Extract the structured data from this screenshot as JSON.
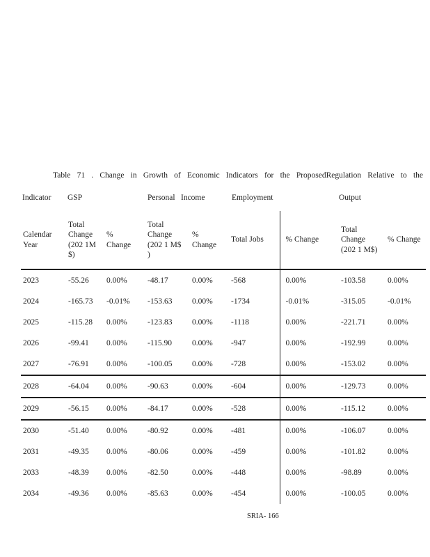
{
  "page": {
    "title": "Table 71 . Change in Growth of Economic Indicators for the ProposedRegulation Relative to the",
    "footer": "SRIA- 166"
  },
  "table": {
    "group_header_row": {
      "indicator": "Indicator",
      "gsp": "GSP",
      "personal": "Personal",
      "income": "Income",
      "employment": "Employment",
      "output": "Output"
    },
    "columns": [
      {
        "id": "calendar-year",
        "lines": [
          "Calendar",
          "Year"
        ]
      },
      {
        "id": "gsp-total-change",
        "lines": [
          "Total",
          "Change",
          "(202  1M",
          "$)"
        ]
      },
      {
        "id": "gsp-pct-change",
        "lines": [
          "%",
          "Change"
        ]
      },
      {
        "id": "personal-income-total-change",
        "lines": [
          "Total",
          "Change",
          "(202  1 M$",
          ")"
        ]
      },
      {
        "id": "personal-income-pct-change",
        "lines": [
          "%",
          "Change"
        ]
      },
      {
        "id": "employment-total-jobs",
        "lines": [
          "Total    Jobs"
        ]
      },
      {
        "id": "employment-pct-change",
        "lines": [
          "%  Change"
        ]
      },
      {
        "id": "output-total-change",
        "lines": [
          "Total",
          "Change",
          "(202   1 M$)"
        ]
      },
      {
        "id": "output-pct-change",
        "lines": [
          "%  Change"
        ]
      }
    ],
    "rows": [
      [
        "2023",
        "-55.26",
        "0.00%",
        "-48.17",
        "0.00%",
        "-568",
        "0.00%",
        "-103.58",
        "0.00%"
      ],
      [
        "2024",
        "-165.73",
        "-0.01%",
        "-153.63",
        "0.00%",
        "-1734",
        "-0.01%",
        "-315.05",
        "-0.01%"
      ],
      [
        "2025",
        "-115.28",
        "0.00%",
        "-123.83",
        "0.00%",
        "-1118",
        "0.00%",
        "-221.71",
        "0.00%"
      ],
      [
        "2026",
        "-99.41",
        "0.00%",
        "-115.90",
        "0.00%",
        "-947",
        "0.00%",
        "-192.99",
        "0.00%"
      ],
      [
        "2027",
        "-76.91",
        "0.00%",
        "-100.05",
        "0.00%",
        "-728",
        "0.00%",
        "-153.02",
        "0.00%"
      ],
      [
        "2028",
        "-64.04",
        "0.00%",
        "-90.63",
        "0.00%",
        "-604",
        "0.00%",
        "-129.73",
        "0.00%"
      ],
      [
        "2029",
        "-56.15",
        "0.00%",
        "-84.17",
        "0.00%",
        "-528",
        "0.00%",
        "-115.12",
        "0.00%"
      ],
      [
        "2030",
        "-51.40",
        "0.00%",
        "-80.92",
        "0.00%",
        "-481",
        "0.00%",
        "-106.07",
        "0.00%"
      ],
      [
        "2031",
        "-49.35",
        "0.00%",
        "-80.06",
        "0.00%",
        "-459",
        "0.00%",
        "-101.82",
        "0.00%"
      ],
      [
        "2033",
        "-48.39",
        "0.00%",
        "-82.50",
        "0.00%",
        "-448",
        "0.00%",
        "-98.89",
        "0.00%"
      ],
      [
        "2034",
        "-49.36",
        "0.00%",
        "-85.63",
        "0.00%",
        "-454",
        "0.00%",
        "-100.05",
        "0.00%"
      ]
    ],
    "rule_above_years": [
      "2028",
      "2029",
      "2030"
    ]
  }
}
